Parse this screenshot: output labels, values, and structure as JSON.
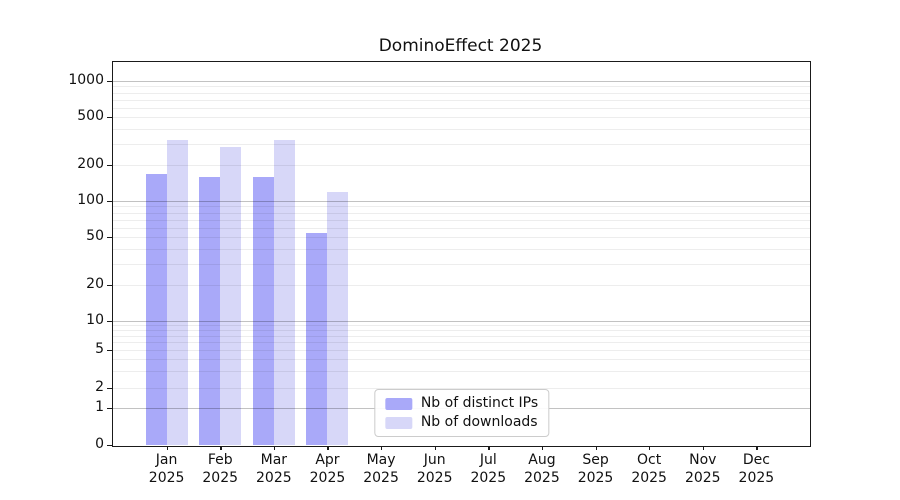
{
  "chart_data": {
    "type": "bar",
    "title": "DominoEffect 2025",
    "categories": [
      "Jan 2025",
      "Feb 2025",
      "Mar 2025",
      "Apr 2025",
      "May 2025",
      "Jun 2025",
      "Jul 2025",
      "Aug 2025",
      "Sep 2025",
      "Oct 2025",
      "Nov 2025",
      "Dec 2025"
    ],
    "series": [
      {
        "name": "Nb of distinct IPs",
        "color": "#a9a9f9",
        "values": [
          167,
          159,
          159,
          54,
          0,
          0,
          0,
          0,
          0,
          0,
          0,
          0
        ]
      },
      {
        "name": "Nb of downloads",
        "color": "#d7d7f8",
        "values": [
          322,
          284,
          322,
          118,
          0,
          0,
          0,
          0,
          0,
          0,
          0,
          0
        ]
      }
    ],
    "xlabel": "",
    "ylabel": "",
    "yscale": "symlog",
    "ylim": [
      0,
      1400
    ],
    "yticks": [
      0,
      1,
      2,
      5,
      10,
      20,
      50,
      100,
      200,
      500,
      1000
    ],
    "yticks_major_grid": [
      1,
      10,
      100,
      1000
    ],
    "yticks_minor": [
      3,
      4,
      6,
      7,
      8,
      9,
      30,
      40,
      60,
      70,
      80,
      90,
      300,
      400,
      600,
      700,
      800,
      900
    ],
    "grid": true,
    "legend_position": "lower center"
  },
  "colors": {
    "bar_distinct_ips": "#a9a9f9",
    "bar_downloads": "#d7d7f8",
    "spine": "#1a1a1a",
    "background": "#ffffff"
  }
}
